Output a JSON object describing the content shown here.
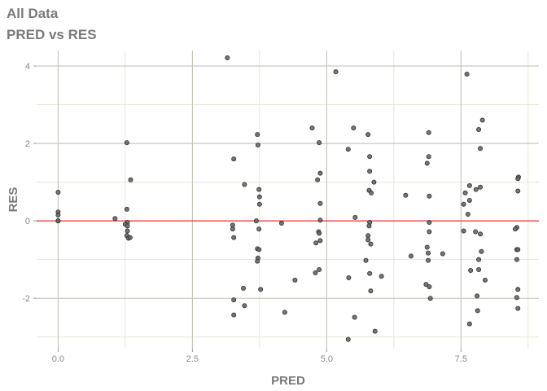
{
  "chart_data": {
    "type": "scatter",
    "title": "All Data",
    "subtitle": "PRED vs RES",
    "xlabel": "PRED",
    "ylabel": "RES",
    "xlim": [
      -0.4,
      8.95
    ],
    "ylim": [
      -3.3,
      4.4
    ],
    "x_ticks": [
      0,
      2.5,
      5,
      7.5
    ],
    "x_tick_labels": [
      "0.0",
      "2.5",
      "5.0",
      "7.5"
    ],
    "y_ticks": [
      -2,
      0,
      2,
      4
    ],
    "y_tick_labels": [
      "-2",
      "0",
      "2",
      "4"
    ],
    "grid": true,
    "reference_line": {
      "y": 0,
      "color": "#ff0000"
    },
    "colors": {
      "point_fill": "#666666",
      "point_stroke": "#333333",
      "title": "#7a7a7a",
      "grid_major": "#bdbdb0",
      "grid_minor": "#e6e6d6"
    },
    "points": [
      [
        0,
        0.74
      ],
      [
        0,
        0.23
      ],
      [
        0,
        0.15
      ],
      [
        0,
        0
      ],
      [
        0,
        0
      ],
      [
        0,
        0
      ],
      [
        1.06,
        0.06
      ],
      [
        1.28,
        2.02
      ],
      [
        1.35,
        1.06
      ],
      [
        1.28,
        0.3
      ],
      [
        1.29,
        -0.04
      ],
      [
        1.25,
        -0.09
      ],
      [
        1.29,
        -0.13
      ],
      [
        1.29,
        -0.26
      ],
      [
        1.28,
        -0.38
      ],
      [
        1.31,
        -0.45
      ],
      [
        1.34,
        -0.43
      ],
      [
        3.15,
        4.21
      ],
      [
        3.71,
        2.23
      ],
      [
        3.72,
        1.96
      ],
      [
        3.27,
        1.6
      ],
      [
        3.47,
        0.94
      ],
      [
        3.74,
        0.81
      ],
      [
        3.75,
        0.62
      ],
      [
        3.75,
        0.43
      ],
      [
        3.69,
        0
      ],
      [
        3.74,
        -0.21
      ],
      [
        3.25,
        -0.11
      ],
      [
        3.25,
        -0.21
      ],
      [
        3.27,
        -0.43
      ],
      [
        3.71,
        -0.72
      ],
      [
        3.74,
        -0.74
      ],
      [
        3.72,
        -0.96
      ],
      [
        3.71,
        -1.04
      ],
      [
        3.45,
        -1.74
      ],
      [
        3.77,
        -1.77
      ],
      [
        3.27,
        -2.04
      ],
      [
        3.47,
        -2.19
      ],
      [
        3.27,
        -2.43
      ],
      [
        4.16,
        -0.06
      ],
      [
        4.22,
        -2.36
      ],
      [
        4.41,
        -1.53
      ],
      [
        4.73,
        2.4
      ],
      [
        4.86,
        2.02
      ],
      [
        4.88,
        1.23
      ],
      [
        4.83,
        1.06
      ],
      [
        4.88,
        0.45
      ],
      [
        4.88,
        0.02
      ],
      [
        4.85,
        -0.28
      ],
      [
        4.86,
        -0.32
      ],
      [
        4.88,
        -0.51
      ],
      [
        4.8,
        -0.57
      ],
      [
        4.86,
        -1.26
      ],
      [
        4.79,
        -1.34
      ],
      [
        5.17,
        3.85
      ],
      [
        5.5,
        2.4
      ],
      [
        5.4,
        1.85
      ],
      [
        5.53,
        0.09
      ],
      [
        5.41,
        -1.47
      ],
      [
        5.52,
        -2.49
      ],
      [
        5.4,
        -3.06
      ],
      [
        5.77,
        2.23
      ],
      [
        5.8,
        1.66
      ],
      [
        5.8,
        1.28
      ],
      [
        5.88,
        1.0
      ],
      [
        5.79,
        0.79
      ],
      [
        5.83,
        0.72
      ],
      [
        5.8,
        -0.04
      ],
      [
        5.79,
        -0.13
      ],
      [
        5.77,
        -0.38
      ],
      [
        5.77,
        -0.49
      ],
      [
        5.82,
        -0.6
      ],
      [
        5.73,
        -1.02
      ],
      [
        5.8,
        -1.36
      ],
      [
        6.02,
        -1.43
      ],
      [
        5.82,
        -1.81
      ],
      [
        5.9,
        -2.85
      ],
      [
        6.47,
        0.66
      ],
      [
        6.57,
        -0.91
      ],
      [
        6.9,
        2.28
      ],
      [
        6.9,
        1.66
      ],
      [
        6.87,
        1.49
      ],
      [
        6.91,
        0.64
      ],
      [
        6.91,
        -0.04
      ],
      [
        6.91,
        -0.28
      ],
      [
        6.87,
        -0.68
      ],
      [
        6.89,
        -0.83
      ],
      [
        7.16,
        -0.85
      ],
      [
        6.89,
        -1.02
      ],
      [
        6.85,
        -1.64
      ],
      [
        6.91,
        -1.7
      ],
      [
        6.93,
        -2.0
      ],
      [
        7.61,
        3.79
      ],
      [
        7.9,
        2.6
      ],
      [
        7.83,
        2.36
      ],
      [
        7.86,
        1.87
      ],
      [
        7.66,
        0.91
      ],
      [
        7.78,
        0.81
      ],
      [
        7.86,
        0.87
      ],
      [
        7.58,
        0.72
      ],
      [
        7.66,
        0.53
      ],
      [
        7.55,
        0.43
      ],
      [
        7.63,
        0.17
      ],
      [
        7.55,
        -0.26
      ],
      [
        7.77,
        -0.28
      ],
      [
        7.86,
        -0.34
      ],
      [
        7.88,
        -0.79
      ],
      [
        7.83,
        -1.0
      ],
      [
        7.68,
        -1.28
      ],
      [
        7.83,
        -1.26
      ],
      [
        7.95,
        -1.53
      ],
      [
        7.8,
        -1.94
      ],
      [
        7.81,
        -2.32
      ],
      [
        7.66,
        -2.66
      ],
      [
        8.57,
        1.13
      ],
      [
        8.56,
        1.09
      ],
      [
        8.56,
        0.77
      ],
      [
        8.54,
        -0.17
      ],
      [
        8.51,
        -0.21
      ],
      [
        8.54,
        -0.74
      ],
      [
        8.56,
        -0.74
      ],
      [
        8.54,
        -1.0
      ],
      [
        8.56,
        -1.77
      ],
      [
        8.54,
        -1.98
      ],
      [
        8.56,
        -2.26
      ]
    ]
  }
}
